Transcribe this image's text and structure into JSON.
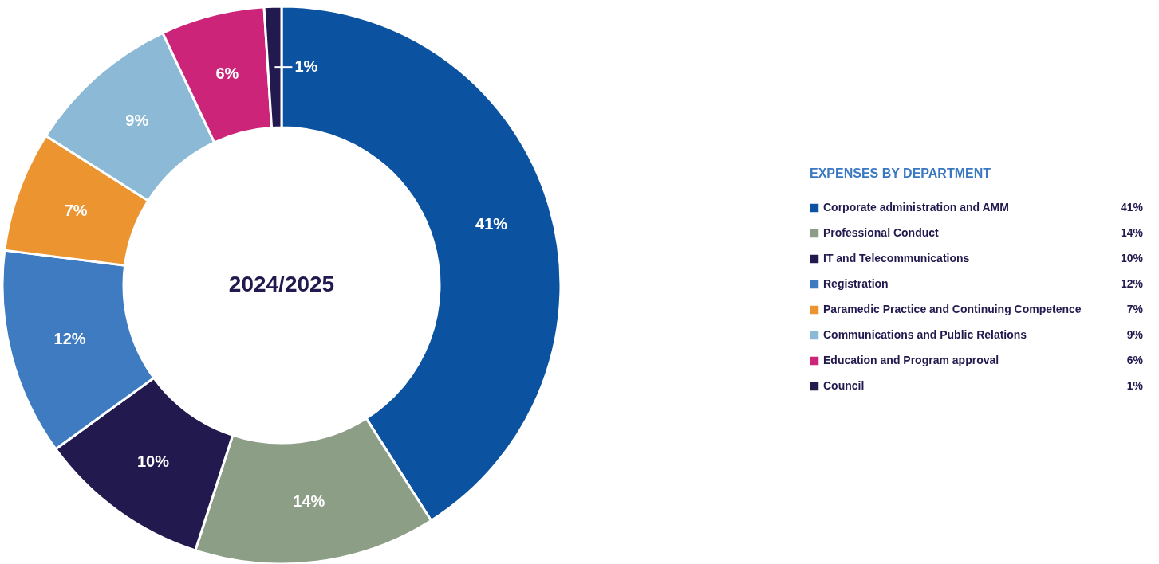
{
  "chart_data": {
    "type": "donut",
    "title": "2024/2025",
    "legend_title": "EXPENSES BY DEPARTMENT",
    "categories": [
      "Corporate administration and AMM",
      "Professional Conduct",
      "IT and Telecommunications",
      "Registration",
      "Paramedic Practice and Continuing Competence",
      "Communications and Public Relations",
      "Education and Program approval",
      "Council"
    ],
    "values": [
      41,
      14,
      10,
      12,
      7,
      9,
      6,
      1
    ],
    "colors": [
      "#0b53a0",
      "#8c9e86",
      "#221a4e",
      "#3f7bc0",
      "#ec9430",
      "#8bb9d6",
      "#cc2479",
      "#221a4e"
    ],
    "value_labels": [
      "41%",
      "14%",
      "10%",
      "12%",
      "7%",
      "9%",
      "6%",
      "1%"
    ],
    "legend": "right"
  }
}
